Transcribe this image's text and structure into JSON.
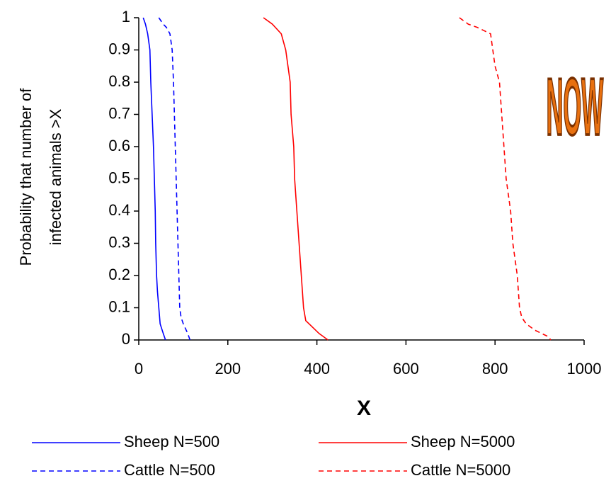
{
  "chart_data": {
    "type": "line",
    "xlabel": "X",
    "ylabel": [
      "Probability that  number of",
      "infected animals >X"
    ],
    "annotation": "NOW",
    "xlim": [
      0,
      1000
    ],
    "xticks": [
      0,
      200,
      400,
      600,
      800,
      1000
    ],
    "ylim": [
      0,
      1
    ],
    "yticks": [
      0,
      0.1,
      0.2,
      0.3,
      0.4,
      0.5,
      0.6,
      0.7,
      0.8,
      0.9,
      1
    ],
    "grid": false,
    "legend": "bottom",
    "series": [
      {
        "name": "Sheep N=500",
        "color": "#0000ff",
        "line_style": "solid",
        "x": [
          10,
          15,
          20,
          25,
          27,
          30,
          33,
          35,
          37,
          38,
          40,
          42,
          45,
          48,
          55,
          60
        ],
        "values": [
          1,
          0.98,
          0.95,
          0.9,
          0.8,
          0.7,
          0.6,
          0.5,
          0.4,
          0.3,
          0.2,
          0.15,
          0.1,
          0.05,
          0.02,
          0
        ]
      },
      {
        "name": "Sheep N=5000",
        "color": "#ff0000",
        "line_style": "solid",
        "x": [
          280,
          300,
          320,
          330,
          335,
          340,
          342,
          348,
          350,
          355,
          360,
          365,
          370,
          375,
          390,
          405,
          420,
          425
        ],
        "values": [
          1,
          0.98,
          0.95,
          0.9,
          0.85,
          0.8,
          0.7,
          0.6,
          0.5,
          0.4,
          0.3,
          0.2,
          0.1,
          0.06,
          0.04,
          0.02,
          0.005,
          0
        ]
      },
      {
        "name": "Cattle N=500",
        "color": "#0000ff",
        "line_style": "dashed",
        "x": [
          45,
          55,
          62,
          70,
          75,
          78,
          80,
          82,
          84,
          86,
          88,
          90,
          92,
          95,
          100,
          110,
          115
        ],
        "values": [
          1,
          0.98,
          0.97,
          0.95,
          0.9,
          0.8,
          0.7,
          0.6,
          0.5,
          0.4,
          0.3,
          0.2,
          0.1,
          0.07,
          0.05,
          0.02,
          0
        ]
      },
      {
        "name": "Cattle N=5000",
        "color": "#ff0000",
        "line_style": "dashed",
        "x": [
          720,
          740,
          760,
          775,
          790,
          795,
          800,
          810,
          815,
          820,
          825,
          835,
          840,
          850,
          855,
          860,
          870,
          890,
          905,
          920,
          925
        ],
        "values": [
          1,
          0.98,
          0.97,
          0.96,
          0.95,
          0.9,
          0.85,
          0.8,
          0.7,
          0.6,
          0.5,
          0.4,
          0.3,
          0.2,
          0.1,
          0.07,
          0.05,
          0.03,
          0.02,
          0.01,
          0
        ]
      }
    ]
  }
}
